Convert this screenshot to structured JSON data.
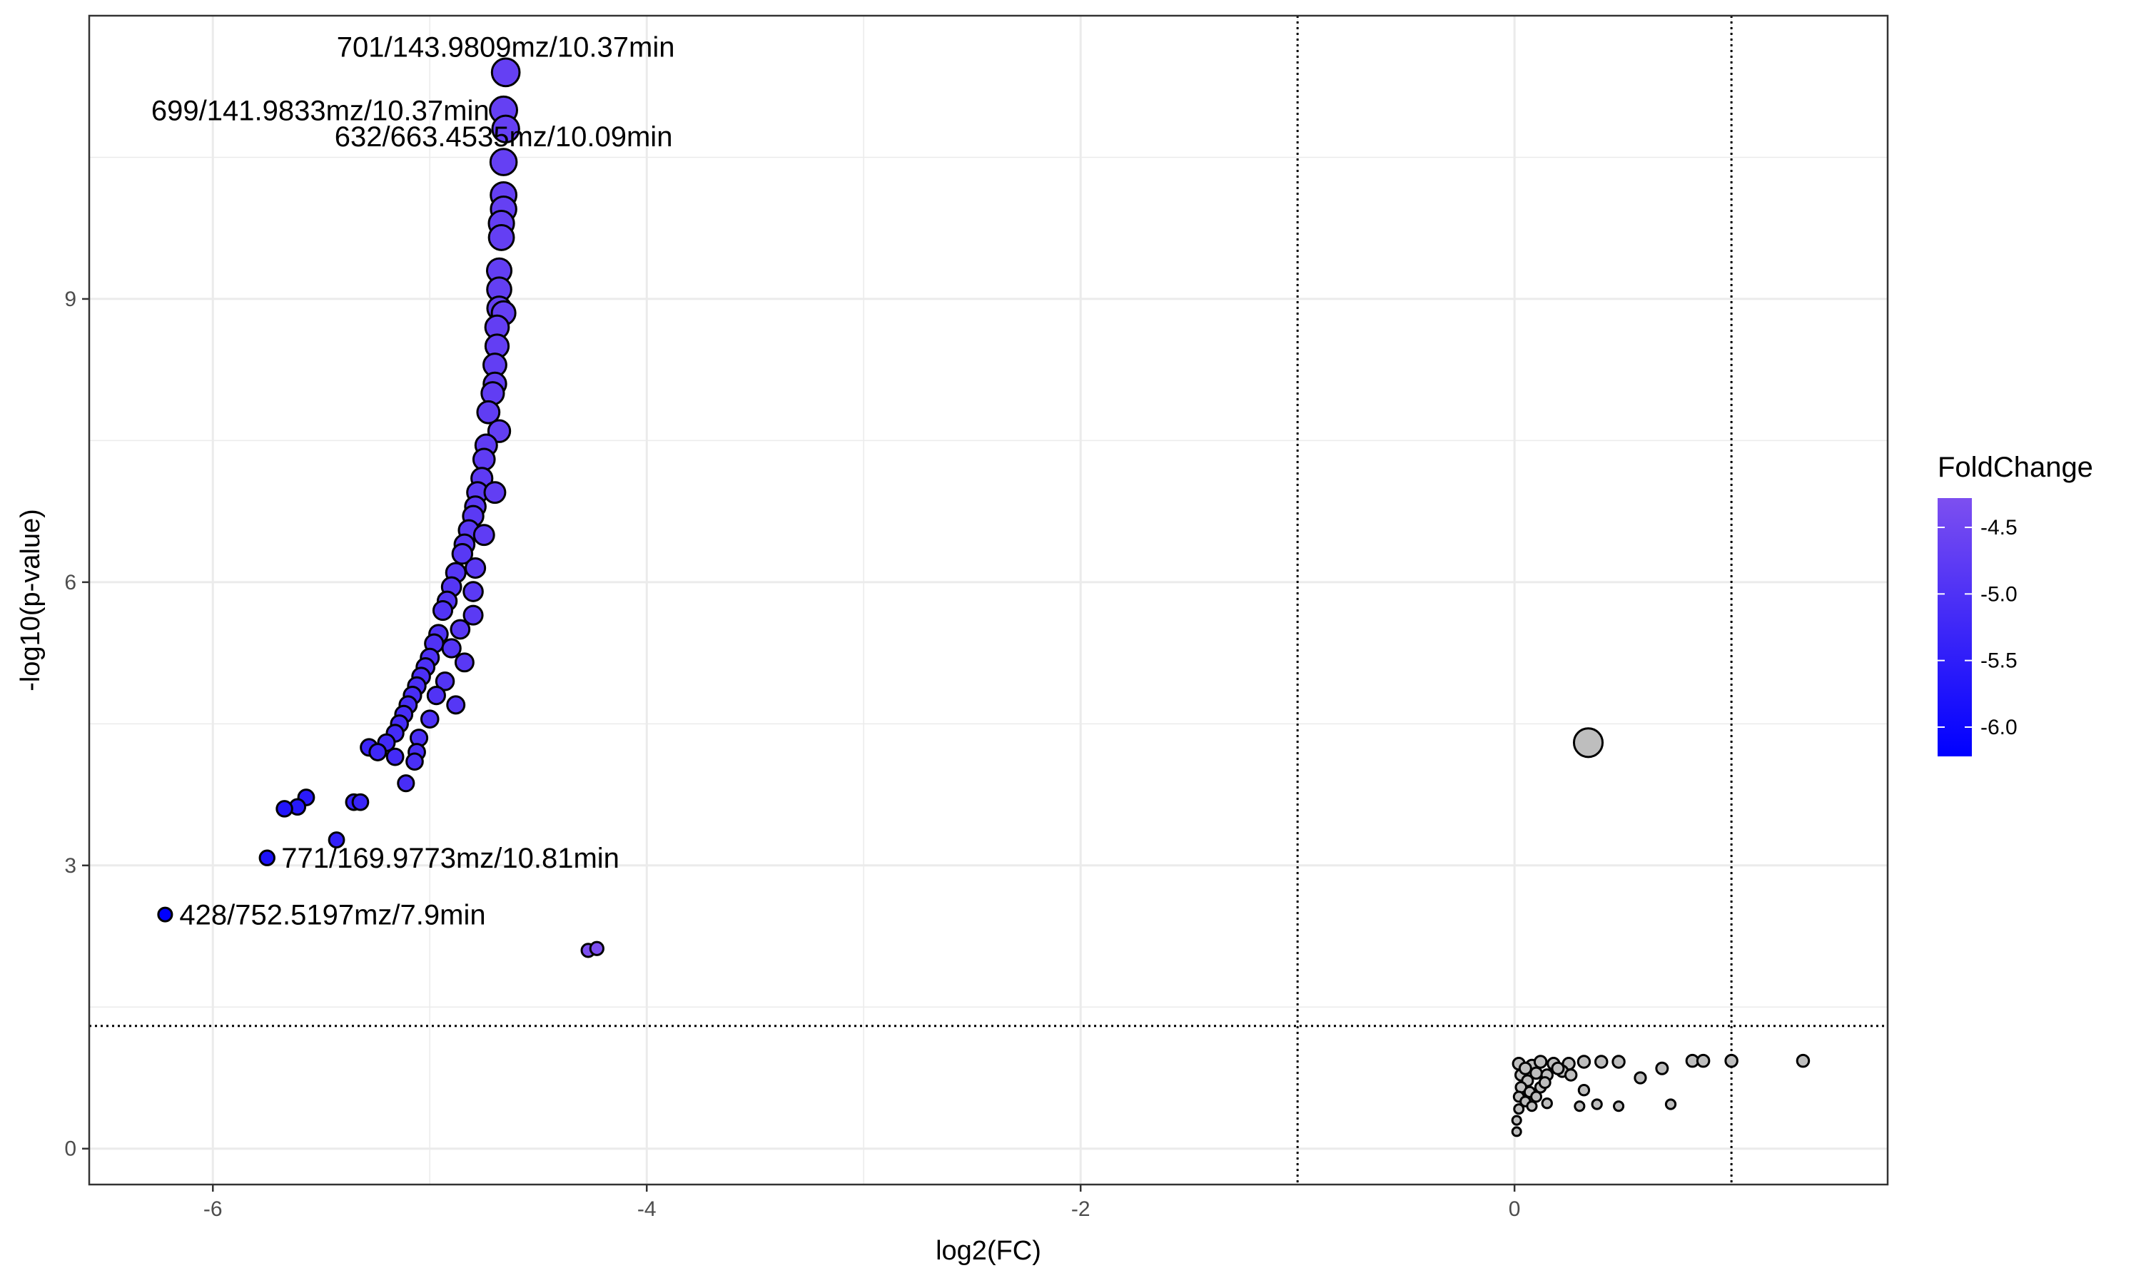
{
  "chart_data": {
    "type": "scatter",
    "title": "",
    "xlabel": "log2(FC)",
    "ylabel": "-log10(p-value)",
    "xlim": [
      -6.57,
      1.72
    ],
    "ylim": [
      -0.38,
      12.0
    ],
    "x_ticks": [
      -6,
      -4,
      -2,
      0
    ],
    "x_tick_labels": [
      "-6",
      "-4",
      "-2",
      "0"
    ],
    "y_ticks": [
      0,
      3,
      6,
      9
    ],
    "y_tick_labels": [
      "0",
      "3",
      "6",
      "9"
    ],
    "grid": true,
    "thresholds": {
      "vertical": [
        -1,
        1
      ],
      "horizontal": [
        1.3
      ]
    },
    "colors": {
      "low": "#0000ff",
      "high": "#7d4ff0",
      "nonsig": "#bebebe",
      "outline": "#000000"
    },
    "legend": {
      "title": "FoldChange",
      "position": "right",
      "range": [
        -6.22,
        -4.28
      ],
      "ticks": [
        -4.5,
        -5.0,
        -5.5,
        -6.0
      ],
      "tick_labels": [
        "-4.5",
        "-5.0",
        "-5.5",
        "-6.0"
      ]
    },
    "series": [
      {
        "group": "significant",
        "points": [
          [
            -4.65,
            11.4
          ],
          [
            -4.66,
            11.0
          ],
          [
            -4.65,
            10.8
          ],
          [
            -4.66,
            10.45
          ],
          [
            -4.66,
            10.1
          ],
          [
            -4.66,
            9.95
          ],
          [
            -4.67,
            9.8
          ],
          [
            -4.67,
            9.65
          ],
          [
            -4.68,
            9.3
          ],
          [
            -4.68,
            9.1
          ],
          [
            -4.68,
            8.9
          ],
          [
            -4.66,
            8.85
          ],
          [
            -4.69,
            8.7
          ],
          [
            -4.69,
            8.5
          ],
          [
            -4.7,
            8.3
          ],
          [
            -4.7,
            8.1
          ],
          [
            -4.71,
            8.0
          ],
          [
            -4.73,
            7.8
          ],
          [
            -4.68,
            7.6
          ],
          [
            -4.74,
            7.45
          ],
          [
            -4.75,
            7.3
          ],
          [
            -4.76,
            7.1
          ],
          [
            -4.78,
            6.95
          ],
          [
            -4.7,
            6.95
          ],
          [
            -4.79,
            6.8
          ],
          [
            -4.8,
            6.7
          ],
          [
            -4.82,
            6.55
          ],
          [
            -4.75,
            6.5
          ],
          [
            -4.84,
            6.4
          ],
          [
            -4.85,
            6.3
          ],
          [
            -4.79,
            6.15
          ],
          [
            -4.88,
            6.1
          ],
          [
            -4.9,
            5.95
          ],
          [
            -4.92,
            5.8
          ],
          [
            -4.8,
            5.9
          ],
          [
            -4.94,
            5.7
          ],
          [
            -4.86,
            5.5
          ],
          [
            -4.8,
            5.65
          ],
          [
            -4.96,
            5.45
          ],
          [
            -4.98,
            5.35
          ],
          [
            -4.9,
            5.3
          ],
          [
            -5.0,
            5.2
          ],
          [
            -4.84,
            5.15
          ],
          [
            -5.02,
            5.1
          ],
          [
            -5.04,
            5.0
          ],
          [
            -4.93,
            4.95
          ],
          [
            -5.06,
            4.9
          ],
          [
            -5.08,
            4.8
          ],
          [
            -4.97,
            4.8
          ],
          [
            -5.1,
            4.7
          ],
          [
            -4.88,
            4.7
          ],
          [
            -5.12,
            4.6
          ],
          [
            -5.0,
            4.55
          ],
          [
            -5.14,
            4.5
          ],
          [
            -5.16,
            4.4
          ],
          [
            -5.05,
            4.35
          ],
          [
            -5.2,
            4.3
          ],
          [
            -5.28,
            4.25
          ],
          [
            -5.24,
            4.2
          ],
          [
            -5.06,
            4.2
          ],
          [
            -5.16,
            4.15
          ],
          [
            -5.07,
            4.1
          ],
          [
            -5.11,
            3.87
          ],
          [
            -5.57,
            3.72
          ],
          [
            -5.35,
            3.67
          ],
          [
            -5.32,
            3.67
          ],
          [
            -5.61,
            3.62
          ],
          [
            -5.67,
            3.6
          ],
          [
            -5.43,
            3.27
          ],
          [
            -5.75,
            3.08
          ],
          [
            -6.22,
            2.48
          ],
          [
            -4.27,
            2.1
          ],
          [
            -4.23,
            2.12
          ]
        ]
      },
      {
        "group": "nonsignificant",
        "points": [
          [
            0.34,
            4.3
          ],
          [
            0.02,
            0.9
          ],
          [
            0.08,
            0.88
          ],
          [
            0.12,
            0.92
          ],
          [
            0.18,
            0.9
          ],
          [
            0.25,
            0.9
          ],
          [
            0.32,
            0.92
          ],
          [
            0.4,
            0.92
          ],
          [
            0.48,
            0.92
          ],
          [
            0.58,
            0.75
          ],
          [
            0.68,
            0.85
          ],
          [
            0.82,
            0.93
          ],
          [
            0.87,
            0.93
          ],
          [
            1.0,
            0.93
          ],
          [
            1.33,
            0.93
          ],
          [
            0.03,
            0.78
          ],
          [
            0.06,
            0.72
          ],
          [
            0.1,
            0.8
          ],
          [
            0.15,
            0.78
          ],
          [
            0.22,
            0.82
          ],
          [
            0.03,
            0.65
          ],
          [
            0.07,
            0.6
          ],
          [
            0.12,
            0.65
          ],
          [
            0.02,
            0.55
          ],
          [
            0.05,
            0.5
          ],
          [
            0.1,
            0.55
          ],
          [
            0.15,
            0.48
          ],
          [
            0.02,
            0.42
          ],
          [
            0.08,
            0.45
          ],
          [
            0.01,
            0.3
          ],
          [
            0.01,
            0.18
          ],
          [
            0.3,
            0.45
          ],
          [
            0.38,
            0.47
          ],
          [
            0.48,
            0.45
          ],
          [
            0.72,
            0.47
          ],
          [
            0.32,
            0.62
          ],
          [
            0.2,
            0.85
          ],
          [
            0.14,
            0.7
          ],
          [
            0.05,
            0.85
          ],
          [
            0.26,
            0.78
          ]
        ]
      }
    ],
    "labels": [
      {
        "text": "701/143.9809mz/10.37min",
        "x": -4.65,
        "y": 11.4,
        "pos": "above"
      },
      {
        "text": "699/141.9833mz/10.37min",
        "x": -4.66,
        "y": 11.0,
        "pos": "left"
      },
      {
        "text": "632/663.4535mz/10.09min",
        "x": -4.66,
        "y": 10.45,
        "pos": "above"
      },
      {
        "text": "771/169.9773mz/10.81min",
        "x": -5.75,
        "y": 3.08,
        "pos": "right"
      },
      {
        "text": "428/752.5197mz/7.9min",
        "x": -6.22,
        "y": 2.48,
        "pos": "right"
      }
    ]
  }
}
